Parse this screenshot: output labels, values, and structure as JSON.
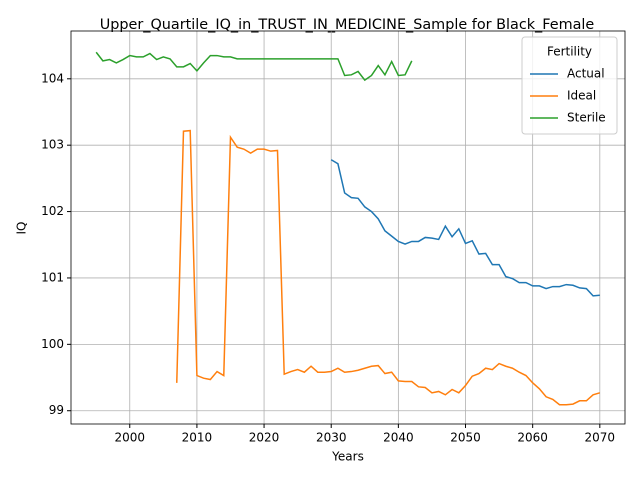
{
  "chart_data": {
    "type": "line",
    "title": "Upper_Quartile_IQ_in_TRUST_IN_MEDICINE_Sample for Black_Female",
    "xlabel": "Years",
    "ylabel": "IQ",
    "legend_title": "Fertility",
    "legend": "upper right",
    "grid": true,
    "xlim": [
      1991.25,
      2073.75
    ],
    "xticks": [
      2000,
      2010,
      2020,
      2030,
      2040,
      2050,
      2060,
      2070
    ],
    "ylim": [
      98.8,
      104.72
    ],
    "yticks": [
      99,
      100,
      101,
      102,
      103,
      104
    ],
    "series": [
      {
        "name": "Actual",
        "color": "#1f77b4",
        "x": [
          2030,
          2031,
          2032,
          2033,
          2034,
          2035,
          2036,
          2037,
          2038,
          2039,
          2040,
          2041,
          2042,
          2043,
          2044,
          2045,
          2046,
          2047,
          2048,
          2049,
          2050,
          2051,
          2052,
          2053,
          2054,
          2055,
          2056,
          2057,
          2058,
          2059,
          2060,
          2061,
          2062,
          2063,
          2064,
          2065,
          2066,
          2067,
          2068,
          2069,
          2070
        ],
        "values": [
          102.78,
          102.72,
          102.28,
          102.21,
          102.2,
          102.07,
          102.0,
          101.89,
          101.71,
          101.63,
          101.55,
          101.51,
          101.55,
          101.55,
          101.61,
          101.6,
          101.58,
          101.78,
          101.62,
          101.74,
          101.52,
          101.56,
          101.36,
          101.37,
          101.2,
          101.2,
          101.02,
          100.99,
          100.93,
          100.93,
          100.88,
          100.88,
          100.84,
          100.87,
          100.87,
          100.9,
          100.89,
          100.85,
          100.84,
          100.73,
          100.74
        ]
      },
      {
        "name": "Ideal",
        "color": "#ff7f0e",
        "x": [
          2007,
          2008,
          2009,
          2010,
          2011,
          2012,
          2013,
          2014,
          2015,
          2016,
          2017,
          2018,
          2019,
          2020,
          2021,
          2022,
          2023,
          2024,
          2025,
          2026,
          2027,
          2028,
          2029,
          2030,
          2031,
          2032,
          2033,
          2034,
          2035,
          2036,
          2037,
          2038,
          2039,
          2040,
          2041,
          2042,
          2043,
          2044,
          2045,
          2046,
          2047,
          2048,
          2049,
          2050,
          2051,
          2052,
          2053,
          2054,
          2055,
          2056,
          2057,
          2058,
          2059,
          2060,
          2061,
          2062,
          2063,
          2064,
          2065,
          2066,
          2067,
          2068,
          2069,
          2070
        ],
        "values": [
          99.42,
          103.21,
          103.22,
          99.53,
          99.49,
          99.47,
          99.59,
          99.53,
          103.12,
          102.97,
          102.94,
          102.88,
          102.94,
          102.94,
          102.91,
          102.92,
          99.55,
          99.59,
          99.62,
          99.58,
          99.67,
          99.58,
          99.58,
          99.59,
          99.64,
          99.58,
          99.59,
          99.61,
          99.64,
          99.67,
          99.68,
          99.56,
          99.58,
          99.45,
          99.44,
          99.44,
          99.36,
          99.35,
          99.27,
          99.29,
          99.24,
          99.32,
          99.27,
          99.38,
          99.52,
          99.56,
          99.64,
          99.62,
          99.71,
          99.67,
          99.64,
          99.58,
          99.53,
          99.42,
          99.33,
          99.21,
          99.17,
          99.09,
          99.09,
          99.1,
          99.15,
          99.15,
          99.24,
          99.27
        ]
      },
      {
        "name": "Sterile",
        "color": "#2ca02c",
        "x": [
          1995,
          1996,
          1997,
          1998,
          1999,
          2000,
          2001,
          2002,
          2003,
          2004,
          2005,
          2006,
          2007,
          2008,
          2009,
          2010,
          2011,
          2012,
          2013,
          2014,
          2015,
          2016,
          2017,
          2018,
          2019,
          2020,
          2021,
          2022,
          2023,
          2024,
          2025,
          2026,
          2027,
          2028,
          2029,
          2030,
          2031,
          2032,
          2033,
          2034,
          2035,
          2036,
          2037,
          2038,
          2039,
          2040,
          2041,
          2042
        ],
        "values": [
          104.4,
          104.27,
          104.29,
          104.24,
          104.29,
          104.35,
          104.33,
          104.33,
          104.38,
          104.29,
          104.33,
          104.3,
          104.18,
          104.18,
          104.23,
          104.12,
          104.24,
          104.35,
          104.35,
          104.33,
          104.33,
          104.3,
          104.3,
          104.3,
          104.3,
          104.3,
          104.3,
          104.3,
          104.3,
          104.3,
          104.3,
          104.3,
          104.3,
          104.3,
          104.3,
          104.3,
          104.3,
          104.05,
          104.06,
          104.11,
          103.98,
          104.05,
          104.2,
          104.06,
          104.26,
          104.05,
          104.06,
          104.27
        ]
      }
    ]
  }
}
